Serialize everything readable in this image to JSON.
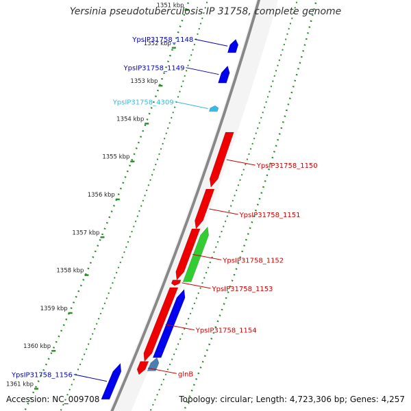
{
  "title": "Yersinia pseudotuberculosis IP 31758, complete genome",
  "footer": {
    "accession": "Accession: NC_009708",
    "topology": "Topology: circular; Length: 4,723,306 bp; Genes: 4,257"
  },
  "colors": {
    "backbone": "#888888",
    "tick": "#2e8b2e",
    "tick_label": "#222222",
    "forward_gene": "#0000ee",
    "forward_small": "#33bbee",
    "reverse_gene": "#ee0000",
    "reverse_green": "#33cc33",
    "reverse_steel": "#4a7fb5",
    "label_blue": "#0000bb",
    "label_cyan": "#33bbdd",
    "label_red": "#cc0000"
  },
  "ticks": [
    {
      "kbp": 1351,
      "label": "1351 kbp"
    },
    {
      "kbp": 1352,
      "label": "1352 kbp"
    },
    {
      "kbp": 1353,
      "label": "1353 kbp"
    },
    {
      "kbp": 1354,
      "label": "1354 kbp"
    },
    {
      "kbp": 1355,
      "label": "1355 kbp"
    },
    {
      "kbp": 1356,
      "label": "1356 kbp"
    },
    {
      "kbp": 1357,
      "label": "1357 kbp"
    },
    {
      "kbp": 1358,
      "label": "1358 kbp"
    },
    {
      "kbp": 1359,
      "label": "1359 kbp"
    },
    {
      "kbp": 1360,
      "label": "1360 kbp"
    },
    {
      "kbp": 1361,
      "label": "1361 kbp"
    }
  ],
  "genes": [
    {
      "name": "YpsIP31758_1148",
      "strand": "forward",
      "start_kbp": 1351.85,
      "end_kbp": 1352.2,
      "color": "forward_gene",
      "label_color": "label_blue"
    },
    {
      "name": "YpsIP31758_1149",
      "strand": "forward",
      "start_kbp": 1352.55,
      "end_kbp": 1353.0,
      "color": "forward_gene",
      "label_color": "label_blue"
    },
    {
      "name": "YpsIP31758_4309",
      "strand": "forward",
      "start_kbp": 1353.6,
      "end_kbp": 1353.75,
      "color": "forward_small",
      "label_color": "label_cyan"
    },
    {
      "name": "YpsIP31758_1150",
      "strand": "reverse",
      "start_kbp": 1354.3,
      "end_kbp": 1355.75,
      "color": "reverse_gene",
      "label_color": "label_red"
    },
    {
      "name": "YpsIP31758_1151",
      "strand": "reverse",
      "start_kbp": 1355.8,
      "end_kbp": 1356.85,
      "color": "reverse_gene",
      "label_color": "label_red"
    },
    {
      "name": "YpsIP31758_1152",
      "strand": "reverse",
      "start_kbp": 1356.85,
      "end_kbp": 1358.2,
      "color": "reverse_gene",
      "label_color": "label_red"
    },
    {
      "name": "YpsIP31758_1153",
      "strand": "reverse",
      "start_kbp": 1358.2,
      "end_kbp": 1358.35,
      "color": "reverse_gene",
      "label_color": "label_red"
    },
    {
      "name": "YpsIP31758_1154",
      "strand": "reverse",
      "start_kbp": 1358.4,
      "end_kbp": 1360.35,
      "color": "reverse_gene",
      "label_color": "label_red"
    },
    {
      "name": "glnB",
      "strand": "reverse",
      "start_kbp": 1360.35,
      "end_kbp": 1360.7,
      "color": "reverse_gene",
      "label_color": "label_red"
    },
    {
      "name": "YpsIP31758_1156",
      "strand": "forward",
      "start_kbp": 1360.4,
      "end_kbp": 1361.35,
      "color": "forward_gene",
      "label_color": "label_blue"
    }
  ],
  "extra_features": [
    {
      "name": "green-feature",
      "start_kbp": 1356.8,
      "end_kbp": 1358.25,
      "color": "reverse_green"
    },
    {
      "name": "blue-feature",
      "start_kbp": 1358.45,
      "end_kbp": 1360.25,
      "color": "forward_gene"
    },
    {
      "name": "steel-feature",
      "start_kbp": 1360.25,
      "end_kbp": 1360.6,
      "color": "reverse_steel"
    }
  ]
}
